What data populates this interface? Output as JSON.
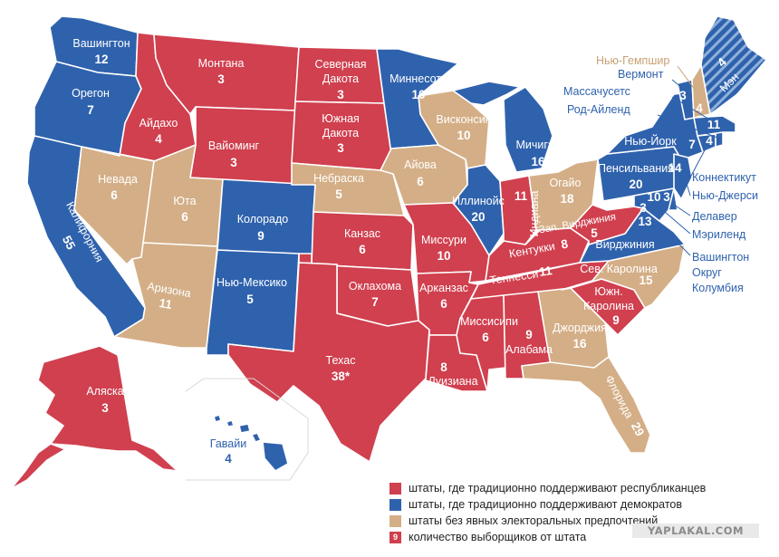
{
  "colors": {
    "republican": "#d0404f",
    "democrat": "#2f62ad",
    "swing": "#d4ae86",
    "label_swing": "#c8a074",
    "label_democrat": "#2f62ad"
  },
  "states": {
    "wa": {
      "name": "Вашингтон",
      "votes": "12"
    },
    "or": {
      "name": "Орегон",
      "votes": "7"
    },
    "ca": {
      "name": "Калифорния",
      "votes": "55"
    },
    "nv": {
      "name": "Невада",
      "votes": "6"
    },
    "id": {
      "name": "Айдахо",
      "votes": "4"
    },
    "mt": {
      "name": "Монтана",
      "votes": "3"
    },
    "wy": {
      "name": "Вайоминг",
      "votes": "3"
    },
    "ut": {
      "name": "Юта",
      "votes": "6"
    },
    "az": {
      "name": "Аризона",
      "votes": "11"
    },
    "co": {
      "name": "Колорадо",
      "votes": "9"
    },
    "nm": {
      "name": "Нью-Мексико",
      "votes": "5"
    },
    "nd": {
      "name": "Северная Дакота",
      "votes": "3"
    },
    "sd": {
      "name": "Южная Дакота",
      "votes": "3"
    },
    "ne": {
      "name": "Небраска",
      "votes": "5"
    },
    "ks": {
      "name": "Канзас",
      "votes": "6"
    },
    "ok": {
      "name": "Оклахома",
      "votes": "7"
    },
    "tx": {
      "name": "Техас",
      "votes": "38*"
    },
    "mn": {
      "name": "Миннесота",
      "votes": "10"
    },
    "ia": {
      "name": "Айова",
      "votes": "6"
    },
    "mo": {
      "name": "Миссури",
      "votes": "10"
    },
    "ar": {
      "name": "Арканзас",
      "votes": "6"
    },
    "la": {
      "name": "Луизиана",
      "votes": "8"
    },
    "wi": {
      "name": "Висконсин",
      "votes": "10"
    },
    "il": {
      "name": "Иллинойс",
      "votes": "20"
    },
    "mi": {
      "name": "Мичиган",
      "votes": "16"
    },
    "in": {
      "name": "Индиана",
      "votes": "11"
    },
    "oh": {
      "name": "Огайо",
      "votes": "18"
    },
    "ky": {
      "name": "Кентукки",
      "votes": "8"
    },
    "tn": {
      "name": "Теннесси",
      "votes": "11"
    },
    "ms": {
      "name": "Миссисипи",
      "votes": "6"
    },
    "al": {
      "name": "Алабама",
      "votes": "9"
    },
    "ga": {
      "name": "Джорджия",
      "votes": "16"
    },
    "fl": {
      "name": "Флорида",
      "votes": "29"
    },
    "sc": {
      "name": "Южн. Каролина",
      "votes": "9"
    },
    "nc": {
      "name": "Сев. Каролина",
      "votes": "15"
    },
    "va": {
      "name": "Вирджиния",
      "votes": "13"
    },
    "wv": {
      "name": "Зап. Вирджиния",
      "votes": "5"
    },
    "pa": {
      "name": "Пенсильвания",
      "votes": "20"
    },
    "ny": {
      "name": "Нью-Йорк",
      "votes": "29"
    },
    "me": {
      "name": "Мэн",
      "votes": "4"
    },
    "ak": {
      "name": "Аляска",
      "votes": "3"
    },
    "hi": {
      "name": "Гавайи",
      "votes": "4"
    },
    "nh": {
      "votes": "4"
    },
    "vt": {
      "votes": "3"
    },
    "ma": {
      "votes": "11"
    },
    "ri": {
      "votes": "4"
    },
    "ct": {
      "votes": "7"
    },
    "nj": {
      "votes": "14"
    },
    "de": {
      "votes": "3"
    },
    "md": {
      "votes": "10"
    },
    "dc": {
      "votes": "3"
    }
  },
  "callouts": {
    "nh": "Нью-Гемпшир",
    "vt": "Вермонт",
    "ma": "Массачусетс",
    "ri": "Род-Айленд",
    "ct": "Коннектикут",
    "nj": "Нью-Джерси",
    "de": "Делавер",
    "md": "Мэриленд",
    "dc": [
      "Вашингтон",
      "Округ",
      "Колумбия"
    ]
  },
  "legend": [
    {
      "color": "#d0404f",
      "text": "штаты, где традиционно поддерживают республиканцев"
    },
    {
      "color": "#2f62ad",
      "text": "штаты, где традиционно поддерживают демократов"
    },
    {
      "color": "#d4ae86",
      "text": "штаты без явных электоральных предпочтений"
    },
    {
      "color": "#d0404f",
      "text": "количество выборщиков от штата",
      "swatch_number": "9"
    }
  ],
  "watermark": "YAPLAKAL.COM"
}
